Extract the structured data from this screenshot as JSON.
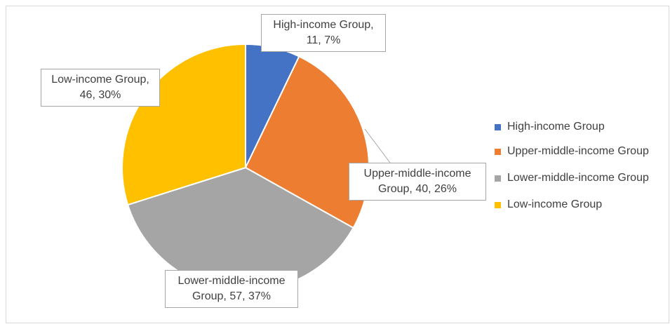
{
  "chart_data": {
    "type": "pie",
    "categories": [
      "High-income Group",
      "Upper-middle-income Group",
      "Lower-middle-income Group",
      "Low-income Group"
    ],
    "values": [
      11,
      40,
      57,
      46
    ],
    "value_labels": [
      "High-income Group, 11, 7%",
      "Upper-middle-income Group, 40, 26%",
      "Lower-middle-income Group, 57, 37%",
      "Low-income Group, 46, 30%"
    ],
    "colors": [
      "#4472c4",
      "#ed7d31",
      "#a5a5a5",
      "#ffc000"
    ],
    "legend": "right"
  }
}
